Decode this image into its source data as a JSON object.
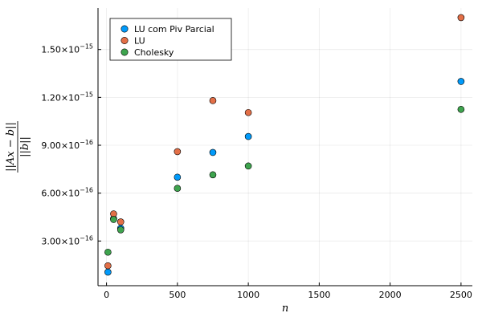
{
  "chart_data": {
    "type": "scatter",
    "title": "",
    "xlabel": "n",
    "ylabel_numerator": "||Ax − b||",
    "ylabel_denominator": "||b||",
    "xlim": [
      -60,
      2580
    ],
    "ylim": [
      2e-17,
      1.76e-15
    ],
    "xticks": [
      0,
      500,
      1000,
      1500,
      2000,
      2500
    ],
    "xtick_labels": [
      "0",
      "500",
      "1000",
      "1500",
      "2000",
      "2500"
    ],
    "yticks": [
      3e-16,
      6e-16,
      9e-16,
      1.2e-15,
      1.5e-15
    ],
    "ytick_labels": [
      {
        "mantissa": "3.00",
        "times": "×10",
        "exp": "−16"
      },
      {
        "mantissa": "6.00",
        "times": "×10",
        "exp": "−16"
      },
      {
        "mantissa": "9.00",
        "times": "×10",
        "exp": "−16"
      },
      {
        "mantissa": "1.20",
        "times": "×10",
        "exp": "−15"
      },
      {
        "mantissa": "1.50",
        "times": "×10",
        "exp": "−15"
      }
    ],
    "grid": true,
    "legend_position": "top-left",
    "series": [
      {
        "name": "LU com Piv Parcial",
        "color": "#009AFA",
        "x": [
          10,
          50,
          100,
          500,
          750,
          1000,
          2500
        ],
        "y": [
          1.05e-16,
          4.4e-16,
          3.8e-16,
          7e-16,
          8.55e-16,
          9.55e-16,
          1.3e-15
        ]
      },
      {
        "name": "LU",
        "color": "#E36F47",
        "x": [
          10,
          50,
          100,
          500,
          750,
          1000,
          2500
        ],
        "y": [
          1.45e-16,
          4.7e-16,
          4.2e-16,
          8.6e-16,
          1.18e-15,
          1.105e-15,
          1.7e-15
        ]
      },
      {
        "name": "Cholesky",
        "color": "#3EA44E",
        "x": [
          10,
          50,
          100,
          500,
          750,
          1000,
          2500
        ],
        "y": [
          2.3e-16,
          4.35e-16,
          3.7e-16,
          6.3e-16,
          7.15e-16,
          7.7e-16,
          1.125e-15
        ]
      }
    ]
  }
}
